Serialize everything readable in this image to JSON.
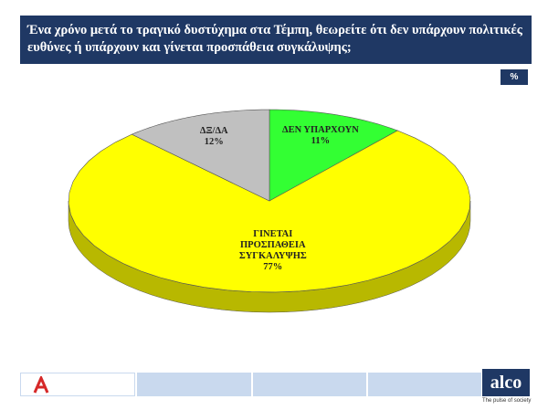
{
  "chart_data": {
    "type": "pie",
    "title": "Ένα χρόνο μετά το τραγικό δυστύχημα στα Τέμπη, θεωρείτε ότι δεν υπάρχουν πολιτικές ευθύνες ή υπάρχουν και γίνεται προσπάθεια συγκάλυψης;",
    "unit": "%",
    "categories": [
      "ΔΕΝ ΥΠΑΡΧΟΥΝ",
      "ΓΙΝΕΤΑΙ ΠΡΟΣΠΑΘΕΙΑ ΣΥΓΚΑΛΥΨΗΣ",
      "ΔΞ/ΔΑ"
    ],
    "values": [
      11,
      77,
      12
    ],
    "value_labels": [
      "11%",
      "77%",
      "12%"
    ],
    "colors": [
      "#33ff33",
      "#ffff00",
      "#c0c0c0"
    ]
  },
  "footer": {
    "brand": "alco",
    "tagline": "The pulse of society"
  }
}
